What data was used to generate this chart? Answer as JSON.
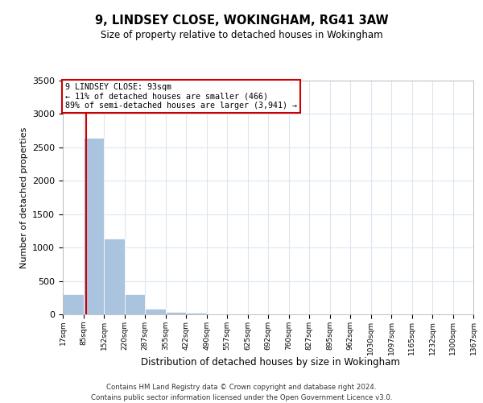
{
  "title": "9, LINDSEY CLOSE, WOKINGHAM, RG41 3AW",
  "subtitle": "Size of property relative to detached houses in Wokingham",
  "xlabel": "Distribution of detached houses by size in Wokingham",
  "ylabel": "Number of detached properties",
  "bin_edges": [
    17,
    85,
    152,
    220,
    287,
    355,
    422,
    490,
    557,
    625,
    692,
    760,
    827,
    895,
    962,
    1030,
    1097,
    1165,
    1232,
    1300,
    1367
  ],
  "bar_heights": [
    300,
    2640,
    1140,
    300,
    90,
    35,
    20,
    0,
    0,
    0,
    0,
    0,
    0,
    0,
    0,
    0,
    0,
    0,
    0,
    0
  ],
  "bar_color": "#aac4e0",
  "bar_edge_color": "#ffffff",
  "property_size": 93,
  "property_line_color": "#cc0000",
  "annotation_text": "9 LINDSEY CLOSE: 93sqm\n← 11% of detached houses are smaller (466)\n89% of semi-detached houses are larger (3,941) →",
  "annotation_box_color": "#ffffff",
  "annotation_box_edge_color": "#cc0000",
  "ylim": [
    0,
    3500
  ],
  "yticks": [
    0,
    500,
    1000,
    1500,
    2000,
    2500,
    3000,
    3500
  ],
  "footer_line1": "Contains HM Land Registry data © Crown copyright and database right 2024.",
  "footer_line2": "Contains public sector information licensed under the Open Government Licence v3.0.",
  "background_color": "#ffffff",
  "grid_color": "#dce6f0",
  "tick_labels": [
    "17sqm",
    "85sqm",
    "152sqm",
    "220sqm",
    "287sqm",
    "355sqm",
    "422sqm",
    "490sqm",
    "557sqm",
    "625sqm",
    "692sqm",
    "760sqm",
    "827sqm",
    "895sqm",
    "962sqm",
    "1030sqm",
    "1097sqm",
    "1165sqm",
    "1232sqm",
    "1300sqm",
    "1367sqm"
  ]
}
